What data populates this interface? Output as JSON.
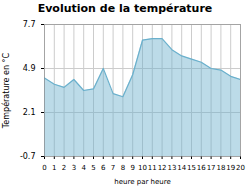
{
  "chart_data": {
    "type": "area",
    "title": "Evolution de la température",
    "xlabel": "heure par heure",
    "ylabel": "Température en °C",
    "x": [
      0,
      1,
      2,
      3,
      4,
      5,
      6,
      7,
      8,
      9,
      10,
      11,
      12,
      13,
      14,
      15,
      16,
      17,
      18,
      19,
      20
    ],
    "values": [
      4.3,
      3.9,
      3.7,
      4.2,
      3.5,
      3.6,
      4.9,
      3.3,
      3.1,
      4.5,
      6.7,
      6.8,
      6.8,
      6.1,
      5.7,
      5.5,
      5.3,
      4.9,
      4.8,
      4.4,
      4.2
    ],
    "xlim": [
      0,
      20
    ],
    "xticks": [
      0,
      1,
      2,
      3,
      4,
      5,
      6,
      7,
      8,
      9,
      10,
      11,
      12,
      13,
      14,
      15,
      16,
      17,
      18,
      19,
      20
    ],
    "ylim": [
      -0.7,
      7.7
    ],
    "yticks": [
      -0.7,
      2.1,
      4.9,
      7.7
    ],
    "grid": true,
    "color": "#6ab0cc"
  }
}
